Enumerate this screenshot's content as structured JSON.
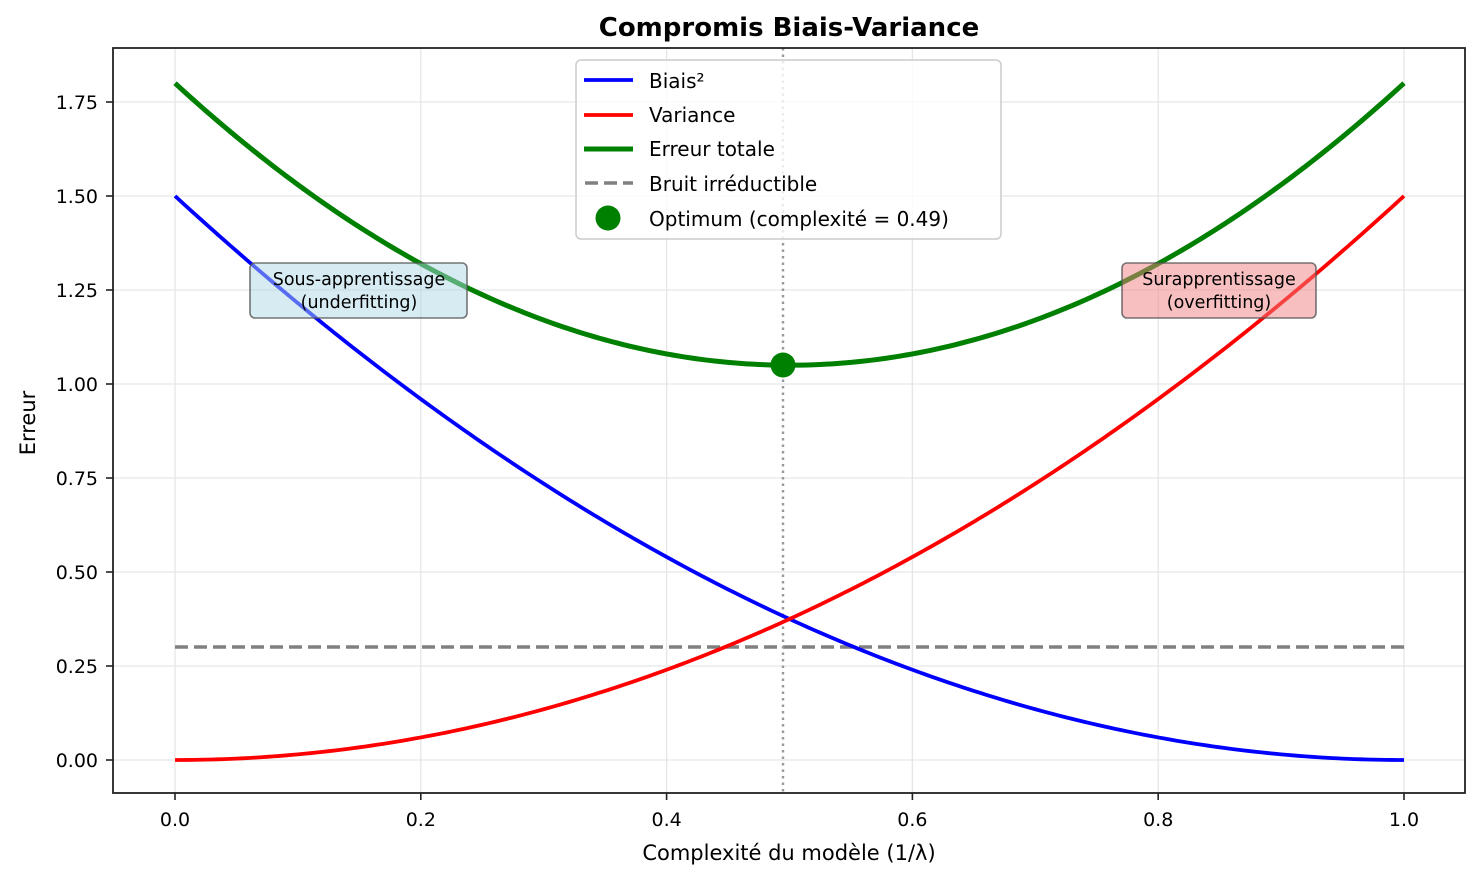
{
  "chart_data": {
    "type": "line",
    "title": "Compromis Biais-Variance",
    "xlabel": "Complexité du modèle (1/λ)",
    "ylabel": "Erreur",
    "xlim": [
      -0.05,
      1.05
    ],
    "ylim": [
      -0.09,
      1.89
    ],
    "grid": true,
    "legend_position": "upper center",
    "x_ticks": [
      "0.0",
      "0.2",
      "0.4",
      "0.6",
      "0.8",
      "1.0"
    ],
    "y_ticks": [
      "0.00",
      "0.25",
      "0.50",
      "0.75",
      "1.00",
      "1.25",
      "1.50",
      "1.75"
    ],
    "x": [
      0.0,
      0.1,
      0.2,
      0.3,
      0.4,
      0.49,
      0.5,
      0.6,
      0.7,
      0.8,
      0.9,
      1.0
    ],
    "series": [
      {
        "name": "Biais²",
        "color": "#0000ff",
        "style": "solid",
        "formula": "1.5*(1-x)^2",
        "values": [
          1.5,
          1.215,
          0.96,
          0.735,
          0.54,
          0.39,
          0.375,
          0.24,
          0.135,
          0.06,
          0.015,
          0.0
        ]
      },
      {
        "name": "Variance",
        "color": "#ff0000",
        "style": "solid",
        "formula": "1.5*x^2",
        "values": [
          0.0,
          0.015,
          0.06,
          0.135,
          0.24,
          0.36,
          0.375,
          0.54,
          0.735,
          0.96,
          1.215,
          1.5
        ]
      },
      {
        "name": "Erreur totale",
        "color": "#008000",
        "style": "solid",
        "formula": "bias + variance + 0.3",
        "values": [
          1.8,
          1.53,
          1.32,
          1.17,
          1.08,
          1.05,
          1.05,
          1.08,
          1.17,
          1.32,
          1.53,
          1.8
        ]
      },
      {
        "name": "Bruit irréductible",
        "color": "#808080",
        "style": "dashed",
        "values": [
          0.3,
          0.3,
          0.3,
          0.3,
          0.3,
          0.3,
          0.3,
          0.3,
          0.3,
          0.3,
          0.3,
          0.3
        ]
      }
    ],
    "optimum": {
      "label": "Optimum (complexité = 0.49)",
      "x": 0.49,
      "y": 1.05,
      "color": "#008000"
    },
    "vline": {
      "x": 0.49,
      "color": "#999999",
      "style": "dotted"
    },
    "annotations": [
      {
        "line1": "Sous-apprentissage",
        "line2": "(underfitting)",
        "x": 0.15,
        "y": 1.25,
        "bg": "#add8e6"
      },
      {
        "line1": "Surapprentissage",
        "line2": "(overfitting)",
        "x": 0.85,
        "y": 1.25,
        "bg": "#f08080"
      }
    ]
  }
}
